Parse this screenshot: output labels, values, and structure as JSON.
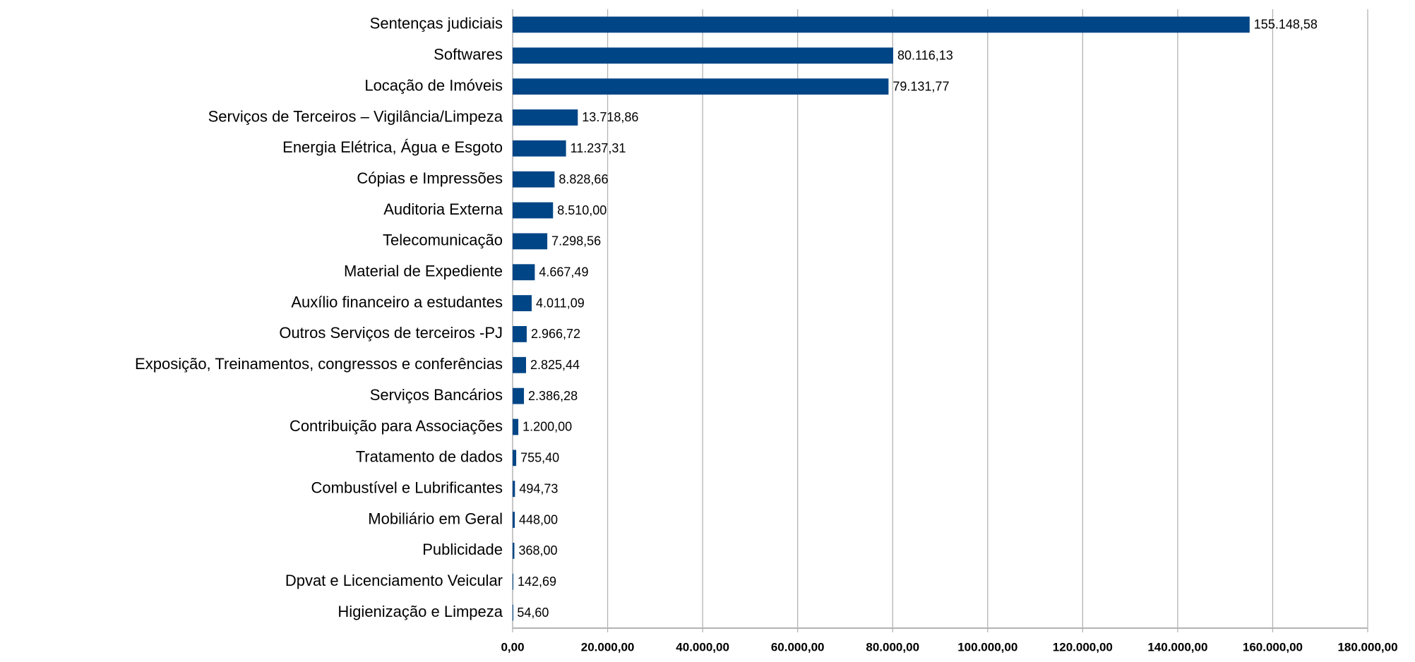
{
  "chart_data": {
    "type": "hbar",
    "categories": [
      "Sentenças judiciais",
      "Softwares",
      "Locação de Imóveis",
      "Serviços de Terceiros – Vigilância/Limpeza",
      "Energia Elétrica, Água e Esgoto",
      "Cópias e Impressões",
      "Auditoria Externa",
      "Telecomunicação",
      "Material de Expediente",
      "Auxílio financeiro a estudantes",
      "Outros Serviços de terceiros -PJ",
      "Exposição, Treinamentos, congressos e conferências",
      "Serviços Bancários",
      "Contribuição para Associações",
      "Tratamento de dados",
      "Combustível e Lubrificantes",
      "Mobiliário em Geral",
      "Publicidade",
      "Dpvat e Licenciamento Veicular",
      "Higienização e Limpeza"
    ],
    "values": [
      155148.58,
      80116.13,
      79131.77,
      13718.86,
      11237.31,
      8828.66,
      8510.0,
      7298.56,
      4667.49,
      4011.09,
      2966.72,
      2825.44,
      2386.28,
      1200.0,
      755.4,
      494.73,
      448.0,
      368.0,
      142.69,
      54.6
    ],
    "value_labels": [
      "155.148,58",
      "80.116,13",
      "79.131,77",
      "13.718,86",
      "11.237,31",
      "8.828,66",
      "8.510,00",
      "7.298,56",
      "4.667,49",
      "4.011,09",
      "2.966,72",
      "2.825,44",
      "2.386,28",
      "1.200,00",
      "755,40",
      "494,73",
      "448,00",
      "368,00",
      "142,69",
      "54,60"
    ],
    "color": "#004586",
    "xlim": [
      0,
      180000
    ],
    "xticks": [
      {
        "value": 0,
        "label": "0,00"
      },
      {
        "value": 20000,
        "label": "20.000,00"
      },
      {
        "value": 40000,
        "label": "40.000,00"
      },
      {
        "value": 60000,
        "label": "60.000,00"
      },
      {
        "value": 80000,
        "label": "80.000,00"
      },
      {
        "value": 100000,
        "label": "100.000,00"
      },
      {
        "value": 120000,
        "label": "120.000,00"
      },
      {
        "value": 140000,
        "label": "140.000,00"
      },
      {
        "value": 160000,
        "label": "160.000,00"
      },
      {
        "value": 180000,
        "label": "180.000,00"
      }
    ],
    "grid": true
  }
}
